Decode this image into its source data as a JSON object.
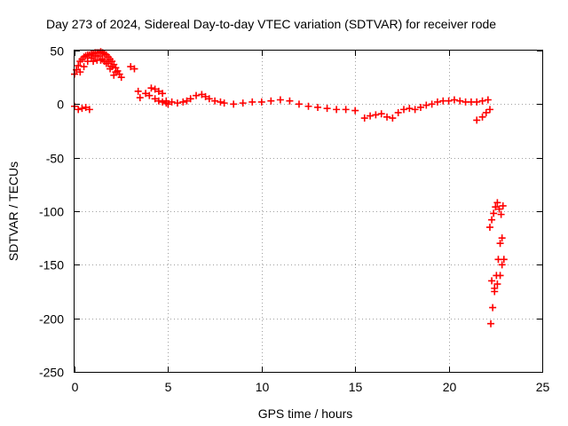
{
  "chart_data": {
    "type": "scatter",
    "title": "Day 273 of 2024, Sidereal Day-to-day VTEC variation (SDTVAR) for receiver rode",
    "xlabel": "GPS time / hours",
    "ylabel": "SDTVAR / TECUs",
    "xlim": [
      0,
      25
    ],
    "ylim": [
      -250,
      50
    ],
    "xticks": [
      0,
      5,
      10,
      15,
      20,
      25
    ],
    "yticks": [
      -250,
      -200,
      -150,
      -100,
      -50,
      0,
      50
    ],
    "xtick_labels": [
      "0",
      "5",
      "10",
      "15",
      "20",
      "25"
    ],
    "ytick_labels": [
      "-250",
      "-200",
      "-150",
      "-100",
      "-50",
      "0",
      "50"
    ],
    "grid": true,
    "marker": "+",
    "series": [
      {
        "name": "SDTVAR",
        "color": "#ff0000",
        "x": [
          0.0,
          0.1,
          0.2,
          0.3,
          0.4,
          0.5,
          0.6,
          0.7,
          0.8,
          0.9,
          1.0,
          1.1,
          1.2,
          1.3,
          1.4,
          1.5,
          1.6,
          1.7,
          1.8,
          1.9,
          2.0,
          2.1,
          2.2,
          2.3,
          2.4,
          2.5,
          0.3,
          0.5,
          0.7,
          0.9,
          1.1,
          1.3,
          1.5,
          1.7,
          1.9,
          2.1,
          1.0,
          1.2,
          1.4,
          1.6,
          1.8,
          2.0,
          2.2,
          0.0,
          0.2,
          0.4,
          0.6,
          0.8,
          3.0,
          3.2,
          3.8,
          4.0,
          3.4,
          3.5,
          4.1,
          4.3,
          4.5,
          4.7,
          4.9,
          5.2,
          5.5,
          5.8,
          6.0,
          6.2,
          6.5,
          6.8,
          7.0,
          7.2,
          7.5,
          7.8,
          8.0,
          8.5,
          9.0,
          9.5,
          10.0,
          10.5,
          11.0,
          11.5,
          12.0,
          12.5,
          13.0,
          13.5,
          14.0,
          14.5,
          15.0,
          4.3,
          4.5,
          4.7,
          4.9,
          5.0,
          15.5,
          15.8,
          16.1,
          16.4,
          16.7,
          17.0,
          17.3,
          17.6,
          17.9,
          18.2,
          18.5,
          18.8,
          19.1,
          19.4,
          19.7,
          20.0,
          20.3,
          20.6,
          20.9,
          21.2,
          21.5,
          21.8,
          22.1,
          21.5,
          21.8,
          22.0,
          22.2,
          22.2,
          22.3,
          22.4,
          22.5,
          22.6,
          22.7,
          22.8,
          22.9,
          22.25,
          22.35,
          22.45,
          22.55,
          22.65,
          22.75,
          22.85,
          22.3,
          22.45,
          22.6,
          22.75,
          22.85,
          22.95
        ],
        "y": [
          28,
          32,
          36,
          40,
          42,
          44,
          45,
          46,
          46,
          47,
          47,
          48,
          48,
          48,
          49,
          48,
          47,
          46,
          44,
          42,
          40,
          37,
          34,
          31,
          28,
          25,
          30,
          35,
          40,
          43,
          45,
          45,
          42,
          38,
          33,
          27,
          40,
          41,
          41,
          40,
          38,
          35,
          30,
          -2,
          -5,
          -4,
          -3,
          -5,
          35,
          33,
          10,
          8,
          12,
          6,
          15,
          14,
          12,
          10,
          3,
          2,
          1,
          2,
          3,
          5,
          8,
          9,
          7,
          5,
          3,
          2,
          1,
          0,
          1,
          2,
          2,
          3,
          4,
          3,
          0,
          -2,
          -3,
          -4,
          -5,
          -5,
          -6,
          5,
          3,
          2,
          1,
          0,
          -13,
          -11,
          -10,
          -9,
          -12,
          -13,
          -8,
          -5,
          -4,
          -5,
          -3,
          -1,
          0,
          2,
          3,
          3,
          4,
          3,
          2,
          2,
          2,
          3,
          4,
          -15,
          -12,
          -8,
          -5,
          -115,
          -108,
          -102,
          -96,
          -92,
          -98,
          -103,
          -95,
          -205,
          -190,
          -175,
          -160,
          -145,
          -130,
          -125,
          -165,
          -172,
          -168,
          -160,
          -150,
          -145
        ]
      }
    ]
  }
}
